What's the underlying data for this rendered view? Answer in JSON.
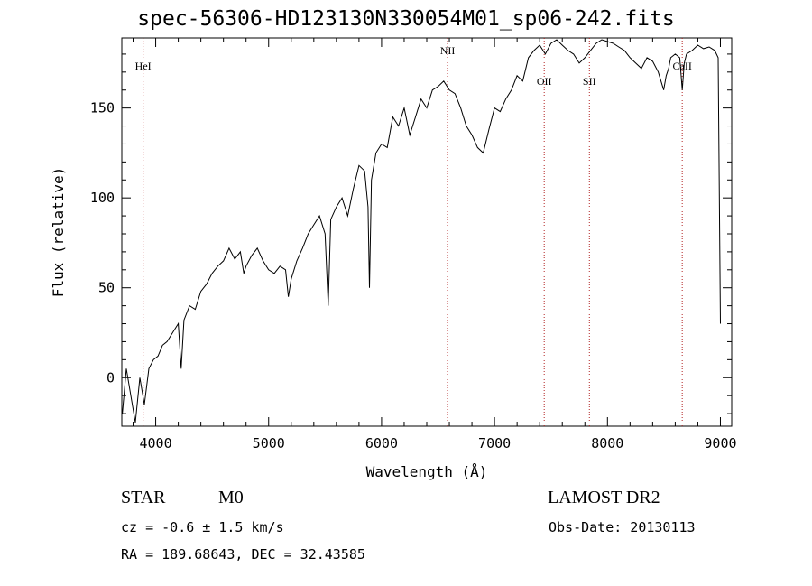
{
  "header": {
    "title": "spec-56306-HD123130N330054M01_sp06-242.fits"
  },
  "info": {
    "object_class": "STAR",
    "subclass": "M0",
    "survey": "LAMOST DR2",
    "cz": "cz = -0.6 ± 1.5 km/s",
    "obs_date": "Obs-Date: 20130113",
    "radec": "RA = 189.68643, DEC =  32.43585"
  },
  "chart_data": {
    "type": "line",
    "title": "spec-56306-HD123130N330054M01_sp06-242.fits",
    "xlabel": "Wavelength (Å)",
    "ylabel": "Flux (relative)",
    "xlim": [
      3700,
      9100
    ],
    "ylim": [
      -27,
      189
    ],
    "xticks": [
      4000,
      5000,
      6000,
      7000,
      8000,
      9000
    ],
    "yticks": [
      0,
      50,
      100,
      150
    ],
    "line_color": "#000000",
    "marker_color": "#b22222",
    "lines": [
      {
        "label": "HeI",
        "wavelength": 3889
      },
      {
        "label": "NII",
        "wavelength": 6584
      },
      {
        "label": "OII",
        "wavelength": 7440
      },
      {
        "label": "SII",
        "wavelength": 7840
      },
      {
        "label": "CaII",
        "wavelength": 8662
      }
    ],
    "series": [
      {
        "x": [
          3705,
          3740,
          3780,
          3820,
          3860,
          3900,
          3940,
          3980,
          4020,
          4060,
          4100,
          4150,
          4200,
          4226,
          4250,
          4300,
          4350,
          4400,
          4450,
          4500,
          4550,
          4600,
          4650,
          4700,
          4750,
          4780,
          4800,
          4850,
          4900,
          4950,
          5000,
          5050,
          5100,
          5150,
          5175,
          5200,
          5250,
          5300,
          5350,
          5400,
          5450,
          5500,
          5528,
          5550,
          5600,
          5650,
          5700,
          5750,
          5800,
          5850,
          5880,
          5893,
          5910,
          5950,
          6000,
          6050,
          6100,
          6150,
          6200,
          6250,
          6300,
          6350,
          6400,
          6450,
          6500,
          6550,
          6600,
          6650,
          6700,
          6750,
          6800,
          6850,
          6900,
          6950,
          7000,
          7050,
          7100,
          7150,
          7200,
          7250,
          7300,
          7350,
          7400,
          7450,
          7500,
          7550,
          7600,
          7650,
          7700,
          7750,
          7800,
          7850,
          7900,
          7950,
          8000,
          8050,
          8100,
          8150,
          8200,
          8250,
          8300,
          8350,
          8400,
          8450,
          8498,
          8520,
          8542,
          8560,
          8600,
          8640,
          8662,
          8680,
          8700,
          8750,
          8800,
          8850,
          8900,
          8950,
          8980,
          9000
        ],
        "y": [
          -20,
          5,
          -10,
          -25,
          0,
          -15,
          5,
          10,
          12,
          18,
          20,
          25,
          30,
          5,
          32,
          40,
          38,
          48,
          52,
          58,
          62,
          65,
          72,
          66,
          70,
          58,
          62,
          68,
          72,
          65,
          60,
          58,
          62,
          60,
          45,
          55,
          65,
          72,
          80,
          85,
          90,
          80,
          40,
          88,
          95,
          100,
          90,
          105,
          118,
          115,
          95,
          50,
          110,
          125,
          130,
          128,
          145,
          140,
          150,
          135,
          145,
          155,
          150,
          160,
          162,
          165,
          160,
          158,
          150,
          140,
          135,
          128,
          125,
          138,
          150,
          148,
          155,
          160,
          168,
          165,
          178,
          182,
          185,
          180,
          186,
          188,
          185,
          182,
          180,
          175,
          178,
          182,
          186,
          188,
          187,
          186,
          184,
          182,
          178,
          175,
          172,
          178,
          176,
          170,
          160,
          168,
          172,
          178,
          180,
          178,
          160,
          175,
          180,
          182,
          185,
          183,
          184,
          182,
          178,
          30
        ]
      }
    ]
  }
}
